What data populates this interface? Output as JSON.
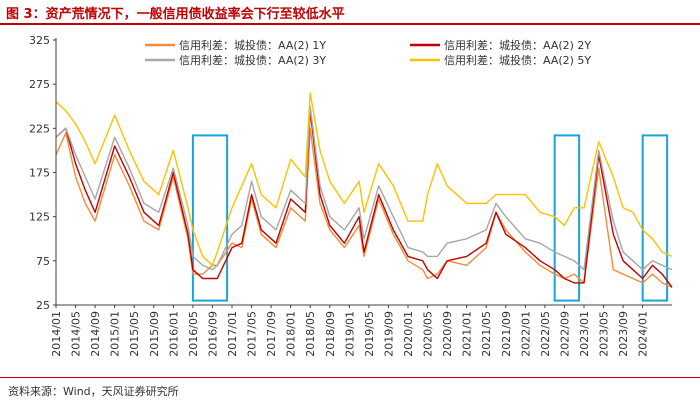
{
  "title": "图 3：资产荒情况下，一般信用债收益率会下行至较低水平",
  "source": "资料来源：Wind，天风证券研究所",
  "chart_data": {
    "type": "line",
    "title": "图 3：资产荒情况下，一般信用债收益率会下行至较低水平",
    "xlabel": "",
    "ylabel": "",
    "ylim": [
      25,
      325
    ],
    "yticks": [
      25,
      75,
      125,
      175,
      225,
      275,
      325
    ],
    "xticks": [
      "2014/01",
      "2014/05",
      "2014/09",
      "2015/01",
      "2015/05",
      "2015/09",
      "2016/01",
      "2016/05",
      "2016/09",
      "2017/01",
      "2017/05",
      "2017/09",
      "2018/01",
      "2018/05",
      "2018/09",
      "2019/01",
      "2019/05",
      "2019/09",
      "2020/01",
      "2020/05",
      "2020/09",
      "2021/01",
      "2021/05",
      "2021/09",
      "2022/01",
      "2022/05",
      "2022/09",
      "2023/01",
      "2023/05",
      "2023/09",
      "2024/01"
    ],
    "grid": false,
    "legend_position": "top",
    "x_months": [
      0,
      2,
      4,
      6,
      8,
      12,
      15,
      18,
      21,
      24,
      27,
      28,
      30,
      32,
      33,
      36,
      38,
      40,
      42,
      45,
      48,
      51,
      52,
      54,
      56,
      59,
      62,
      63,
      66,
      69,
      72,
      75,
      76,
      78,
      80,
      84,
      88,
      90,
      92,
      96,
      99,
      102,
      104,
      106,
      108,
      111,
      114,
      116,
      118,
      120,
      122,
      124,
      126
    ],
    "series": [
      {
        "name": "信用利差：城投债：AA(2) 1Y",
        "color": "#f28c3a",
        "values": [
          195,
          220,
          170,
          140,
          120,
          195,
          160,
          120,
          110,
          170,
          100,
          60,
          60,
          70,
          70,
          95,
          90,
          145,
          105,
          90,
          135,
          120,
          225,
          140,
          110,
          90,
          115,
          80,
          145,
          105,
          75,
          65,
          55,
          60,
          75,
          70,
          90,
          130,
          110,
          85,
          70,
          60,
          55,
          60,
          50,
          180,
          65,
          60,
          55,
          50,
          60,
          50,
          45
        ]
      },
      {
        "name": "信用利差：城投债：AA(2) 2Y",
        "color": "#c00000",
        "values": [
          215,
          225,
          185,
          155,
          130,
          205,
          170,
          130,
          115,
          175,
          105,
          65,
          55,
          55,
          55,
          90,
          95,
          150,
          110,
          95,
          145,
          130,
          245,
          150,
          115,
          95,
          125,
          85,
          150,
          110,
          80,
          75,
          65,
          55,
          75,
          80,
          95,
          130,
          105,
          90,
          75,
          65,
          55,
          50,
          50,
          195,
          105,
          75,
          65,
          55,
          70,
          60,
          45
        ]
      },
      {
        "name": "信用利差：城投债：AA(2) 3Y",
        "color": "#a6a6a6",
        "values": [
          215,
          225,
          195,
          170,
          145,
          215,
          180,
          140,
          130,
          180,
          115,
          80,
          70,
          65,
          70,
          105,
          115,
          165,
          125,
          110,
          155,
          140,
          250,
          160,
          125,
          110,
          135,
          100,
          160,
          125,
          90,
          85,
          80,
          80,
          95,
          100,
          110,
          140,
          125,
          100,
          95,
          85,
          80,
          75,
          65,
          200,
          120,
          85,
          75,
          65,
          75,
          70,
          65
        ]
      },
      {
        "name": "信用利差：城投债：AA(2) 5Y",
        "color": "#ffc000",
        "values": [
          255,
          245,
          230,
          210,
          185,
          240,
          200,
          165,
          150,
          200,
          135,
          110,
          80,
          70,
          85,
          135,
          160,
          185,
          150,
          135,
          190,
          170,
          265,
          200,
          165,
          140,
          165,
          130,
          185,
          160,
          120,
          120,
          150,
          185,
          160,
          140,
          140,
          150,
          150,
          150,
          130,
          125,
          115,
          135,
          135,
          210,
          170,
          135,
          130,
          110,
          100,
          85,
          80
        ]
      }
    ],
    "highlight_boxes": [
      {
        "from": "2016/05",
        "to": "2016/12",
        "ymin": 30,
        "ymax": 217
      },
      {
        "from": "2022/07",
        "to": "2022/12",
        "ymin": 30,
        "ymax": 217
      },
      {
        "from": "2024/01",
        "to": "2024/06",
        "ymin": 30,
        "ymax": 217
      }
    ]
  },
  "colors": {
    "title": "#c00000",
    "rule": "#c00000",
    "box": "#1aa3d9",
    "axis": "#404040"
  }
}
